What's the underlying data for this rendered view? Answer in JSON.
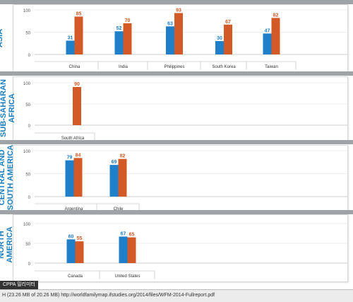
{
  "chart_data": [
    {
      "type": "bar",
      "region": "ASIA",
      "categories": [
        "China",
        "India",
        "Philippines",
        "South Korea",
        "Taiwan"
      ],
      "series": [
        {
          "values": [
            31,
            52,
            63,
            30,
            47
          ]
        },
        {
          "values": [
            85,
            70,
            93,
            67,
            82
          ]
        }
      ],
      "ylim": [
        0,
        100
      ],
      "yticks": [
        "100",
        "50",
        "0"
      ]
    },
    {
      "type": "bar",
      "region": "SUB-SAHARAN\nAFRICA",
      "categories": [
        "South Africa"
      ],
      "series": [
        {
          "values": [
            null
          ]
        },
        {
          "values": [
            90
          ]
        }
      ],
      "ylim": [
        0,
        100
      ],
      "yticks": [
        "100",
        "50",
        "0"
      ]
    },
    {
      "type": "bar",
      "region": "CENTRAL AND\nSOUTH AMERICA",
      "categories": [
        "Argentina",
        "Chile"
      ],
      "series": [
        {
          "values": [
            79,
            69
          ]
        },
        {
          "values": [
            84,
            82
          ]
        }
      ],
      "ylim": [
        0,
        100
      ],
      "yticks": [
        "100",
        "50",
        "0"
      ]
    },
    {
      "type": "bar",
      "region": "NORTH\nAMERICA",
      "categories": [
        "Canada",
        "United States"
      ],
      "series": [
        {
          "values": [
            60,
            67
          ]
        },
        {
          "values": [
            55,
            65
          ]
        }
      ],
      "ylim": [
        0,
        100
      ],
      "yticks": [
        "100",
        "50",
        "0"
      ]
    }
  ],
  "colors": {
    "series_0": "#1f7fc8",
    "series_1": "#d35a27",
    "region_label": "#1a7fc1"
  },
  "status_bar": {
    "text": "H (23.26 MB of 20.26 MB)  http://worldfamilymap.ifstudies.org/2014/files/WFM-2014-Fullreport.pdf",
    "tooltip": "CPPA 밀리미터"
  }
}
